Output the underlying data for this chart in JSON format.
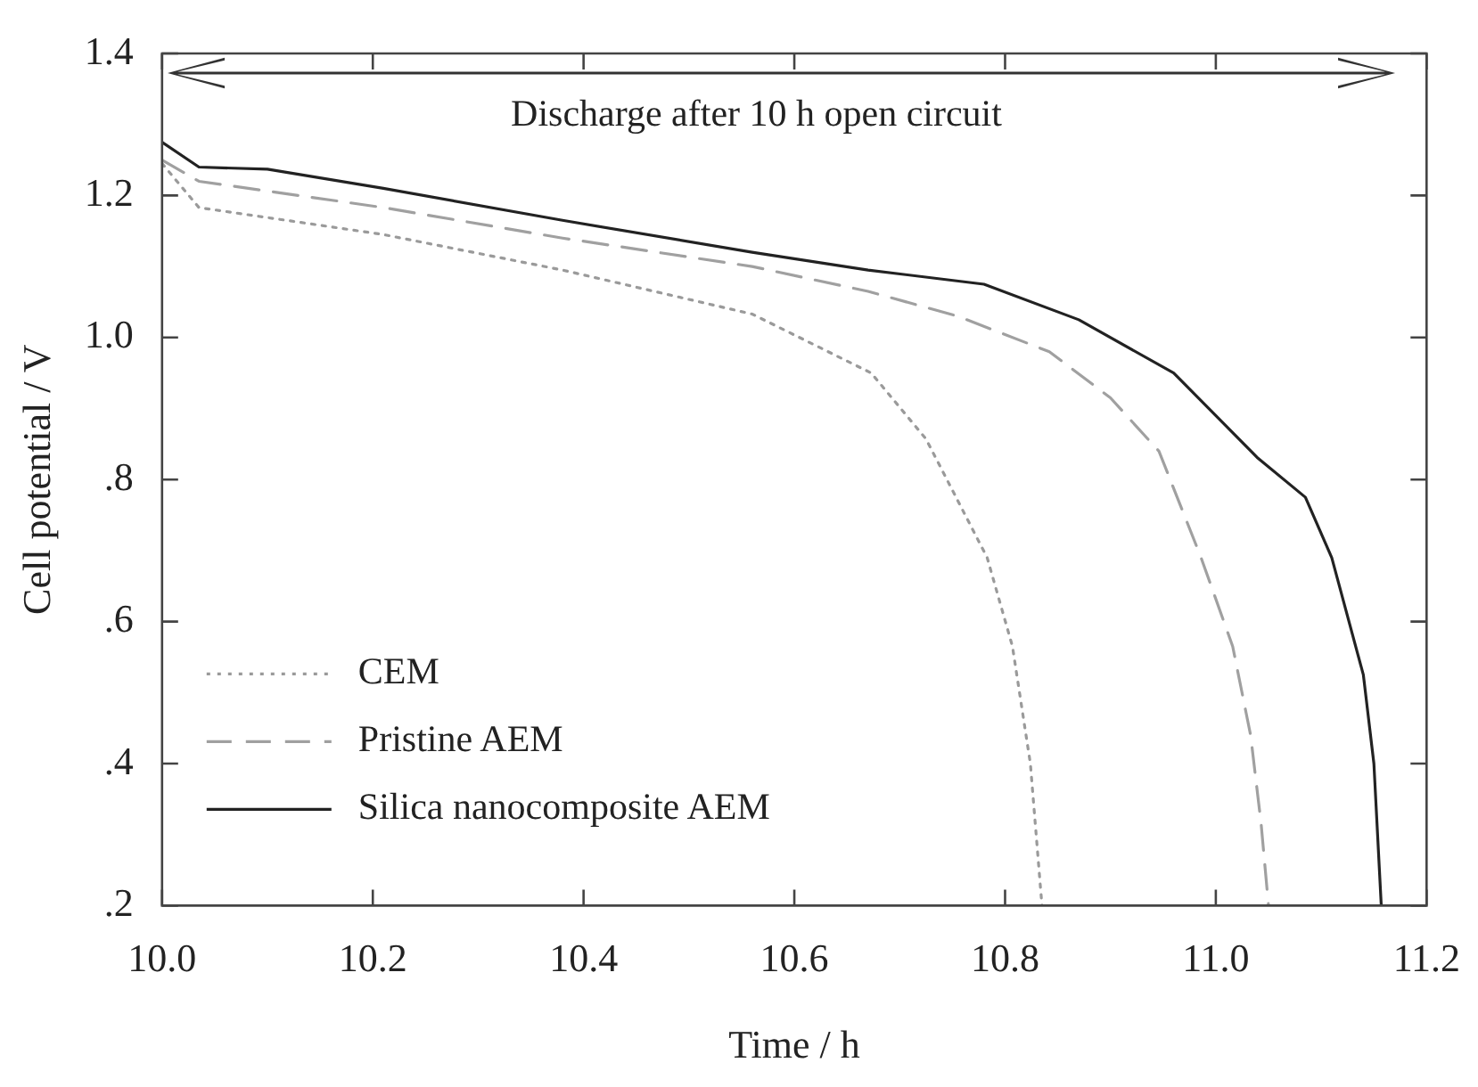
{
  "chart_data": {
    "type": "line",
    "xlabel": "Time / h",
    "ylabel": "Cell potential / V",
    "annotations": [
      "Discharge after 10 h open circuit"
    ],
    "xlim": [
      10.0,
      11.2
    ],
    "ylim": [
      0.2,
      1.4
    ],
    "xticks": [
      {
        "value": 10.0,
        "label": "10.0"
      },
      10.2,
      10.4,
      10.6,
      10.8,
      {
        "value": 11.0,
        "label": "11.0"
      },
      11.2
    ],
    "yticks": [
      {
        "value": 0.2,
        "label": ".2"
      },
      {
        "value": 0.4,
        "label": ".4"
      },
      {
        "value": 0.6,
        "label": ".6"
      },
      {
        "value": 0.8,
        "label": ".8"
      },
      {
        "value": 1.0,
        "label": "1.0"
      },
      1.2,
      1.4
    ],
    "grid": false,
    "legend": "bottom left",
    "marker": "none",
    "series": [
      {
        "name": "CEM",
        "color": "#9a9a9a",
        "line_style": "dotted",
        "x": [
          10.0,
          10.035,
          10.21,
          10.38,
          10.56,
          10.673,
          10.725,
          10.783,
          10.807,
          10.824,
          10.835
        ],
        "values": [
          1.245,
          1.183,
          1.145,
          1.095,
          1.033,
          0.95,
          0.857,
          0.69,
          0.565,
          0.4,
          0.2
        ]
      },
      {
        "name": "Pristine AEM",
        "color": "#a0a0a0",
        "line_style": "dashed",
        "x": [
          10.0,
          10.035,
          10.21,
          10.38,
          10.56,
          10.67,
          10.755,
          10.842,
          10.9,
          10.946,
          10.986,
          11.016,
          11.033,
          11.043,
          11.05
        ],
        "values": [
          1.25,
          1.22,
          1.183,
          1.14,
          1.1,
          1.065,
          1.03,
          0.98,
          0.915,
          0.84,
          0.69,
          0.565,
          0.44,
          0.315,
          0.2
        ]
      },
      {
        "name": "Silica nanocomposite AEM",
        "color": "#222222",
        "line_style": "solid",
        "x": [
          10.0,
          10.035,
          10.1,
          10.21,
          10.38,
          10.56,
          10.67,
          10.78,
          10.87,
          10.96,
          11.04,
          11.085,
          11.11,
          11.14,
          11.15,
          11.157
        ],
        "values": [
          1.275,
          1.24,
          1.237,
          1.21,
          1.165,
          1.12,
          1.095,
          1.075,
          1.025,
          0.95,
          0.83,
          0.775,
          0.69,
          0.525,
          0.4,
          0.2
        ]
      }
    ]
  }
}
